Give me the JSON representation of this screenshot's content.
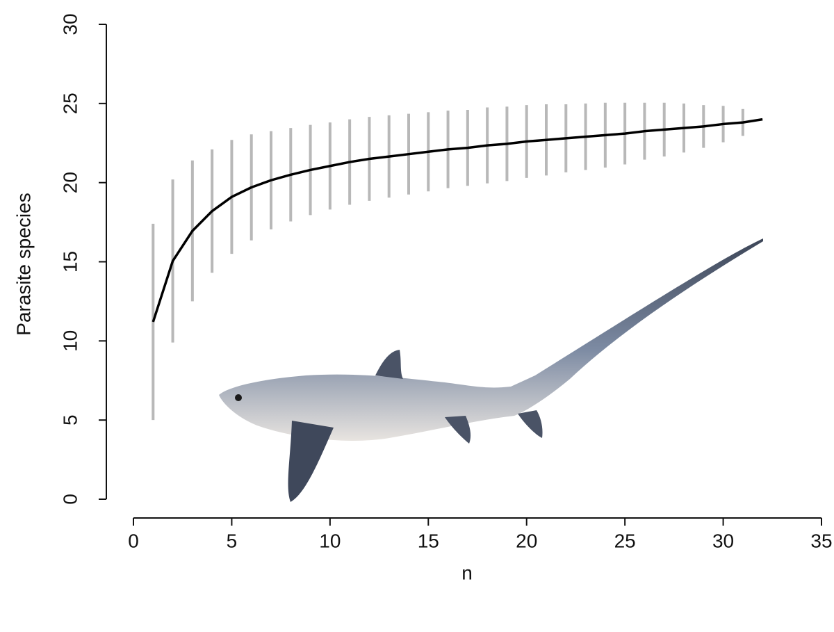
{
  "chart_data": {
    "type": "line",
    "xlabel": "n",
    "ylabel": "Parasite species",
    "x": [
      1,
      2,
      3,
      4,
      5,
      6,
      7,
      8,
      9,
      10,
      11,
      12,
      13,
      14,
      15,
      16,
      17,
      18,
      19,
      20,
      21,
      22,
      23,
      24,
      25,
      26,
      27,
      28,
      29,
      30,
      31,
      32
    ],
    "values": [
      11.2,
      15.05,
      16.95,
      18.2,
      19.1,
      19.7,
      20.15,
      20.5,
      20.8,
      21.05,
      21.3,
      21.5,
      21.65,
      21.8,
      21.95,
      22.1,
      22.2,
      22.35,
      22.45,
      22.6,
      22.7,
      22.8,
      22.9,
      23.0,
      23.1,
      23.25,
      23.35,
      23.45,
      23.55,
      23.7,
      23.8,
      24.0
    ],
    "errors": [
      6.2,
      5.15,
      4.45,
      3.9,
      3.6,
      3.35,
      3.1,
      2.95,
      2.85,
      2.75,
      2.7,
      2.65,
      2.6,
      2.55,
      2.5,
      2.45,
      2.4,
      2.4,
      2.35,
      2.3,
      2.25,
      2.15,
      2.1,
      2.05,
      1.95,
      1.8,
      1.7,
      1.55,
      1.35,
      1.15,
      0.85,
      null
    ],
    "color": "#000000",
    "error_color": "#b8b8b8",
    "xlim": [
      0,
      35
    ],
    "ylim": [
      0,
      30
    ],
    "xticks": [
      0,
      5,
      10,
      15,
      20,
      25,
      30,
      35
    ],
    "yticks": [
      0,
      5,
      10,
      15,
      20,
      25,
      30
    ]
  }
}
